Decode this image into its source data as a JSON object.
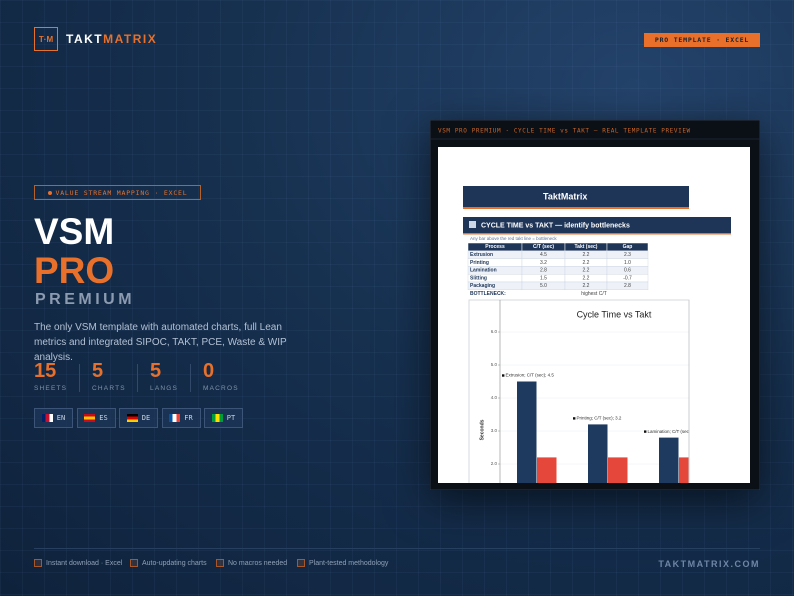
{
  "brand": {
    "logo": "T·M",
    "name_primary": "TAKT",
    "name_accent": "MATRIX"
  },
  "badge": "PRO TEMPLATE · EXCEL",
  "hero": {
    "tag": "VALUE STREAM MAPPING · EXCEL",
    "title_1": "VSM",
    "title_2": "PRO",
    "title_3": "PREMIUM",
    "description": "The only VSM template with automated charts, full Lean metrics and integrated SIPOC, TAKT, PCE, Waste & WIP analysis."
  },
  "stats": [
    {
      "value": 15,
      "label": "SHEETS"
    },
    {
      "value": 5,
      "label": "CHARTS"
    },
    {
      "value": 5,
      "label": "LANGS"
    },
    {
      "value": 0,
      "label": "MACROS"
    }
  ],
  "languages": [
    "EN",
    "ES",
    "DE",
    "FR",
    "PT"
  ],
  "preview": {
    "caption": "VSM PRO PREMIUM · CYCLE TIME vs TAKT — REAL TEMPLATE PREVIEW",
    "sheet_title": "TaktMatrix",
    "section_title": "CYCLE TIME vs TAKT — identify bottlenecks",
    "note": "Any bar above the red takt line = bottleneck",
    "table": {
      "header": [
        "Process",
        "C/T (sec)",
        "Takt (sec)",
        "Gap"
      ],
      "rows": [
        [
          "Extrusion",
          "4.5",
          "2.2",
          "2.3"
        ],
        [
          "Printing",
          "3.2",
          "2.2",
          "1.0"
        ],
        [
          "Lamination",
          "2.8",
          "2.2",
          "0.6"
        ],
        [
          "Slitting",
          "1.5",
          "2.2",
          "-0.7"
        ],
        [
          "Packaging",
          "5.0",
          "2.2",
          "2.8"
        ]
      ],
      "footer": [
        "BOTTLENECK:",
        "highest C/T"
      ]
    },
    "chart": {
      "type": "bar",
      "title": "Cycle Time vs Takt",
      "y_label": "Seconds",
      "series": [
        {
          "color": "#1e3a5f",
          "values": [
            4.5,
            3.2,
            2.8
          ],
          "value_labels": [
            "Extrusion; C/T (sec); 4.5",
            "Printing; C/T (sec); 3.2",
            "Lamination; C/T (sec); 2.8"
          ]
        },
        {
          "color": "#e5483a",
          "values": [
            2.2,
            2.2,
            2.2
          ]
        }
      ],
      "ylim": [
        0,
        7
      ],
      "yticks": [
        {
          "value": 2,
          "label": "2.0"
        },
        {
          "value": 3,
          "label": "3.0"
        },
        {
          "value": 4,
          "label": "4.0"
        },
        {
          "value": 5,
          "label": "5.0"
        },
        {
          "value": 6,
          "label": "6.0"
        }
      ],
      "grid": true
    }
  },
  "features": [
    "Instant download · Excel",
    "Auto-updating charts",
    "No macros needed",
    "Plant-tested methodology"
  ],
  "site": "TAKTMATRIX.COM"
}
